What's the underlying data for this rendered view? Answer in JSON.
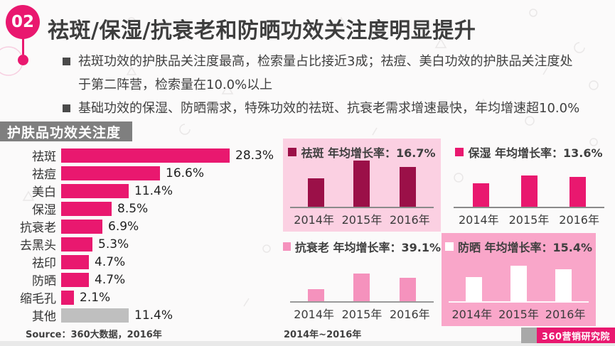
{
  "slide": {
    "number": "02",
    "title": "祛斑/保湿/抗衰老和防晒功效关注度明显提升",
    "bullets": [
      "祛斑功效的护肤品关注度最高，检索量占比接近3成；祛痘、美白功效的护肤品关注度处于第二阵营，检索量在10.0%以上",
      "基础功效的保湿、防晒需求，特殊功效的祛斑、抗衰老需求增速最快，年均增速超10.0%"
    ],
    "section_label": "护肤品功效关注度",
    "source": "Source：360大数据，2016年",
    "period_note": "2014年~2016年",
    "logo_text": "360营销研究院"
  },
  "colors": {
    "accent_magenta": "#e9186f",
    "dark_crimson": "#9b1048",
    "light_pink_bar": "#f592bd",
    "panel_pink_light": "#fbd0e2",
    "panel_pink_medium": "#f9a6c9",
    "other_bar_gray": "#bfbfbf",
    "band_gray": "#7f7f7f",
    "text_dark": "#3f3f3f"
  },
  "chart_data": [
    {
      "type": "bar",
      "orientation": "horizontal",
      "title": "护肤品功效关注度",
      "categories": [
        "祛斑",
        "祛痘",
        "美白",
        "保湿",
        "抗衰老",
        "去黑头",
        "祛印",
        "防晒",
        "缩毛孔",
        "其他"
      ],
      "values": [
        28.3,
        16.6,
        11.4,
        8.5,
        6.9,
        5.3,
        4.7,
        4.7,
        2.1,
        11.4
      ],
      "value_labels": [
        "28.3%",
        "16.6%",
        "11.4%",
        "8.5%",
        "6.9%",
        "5.3%",
        "4.7%",
        "4.7%",
        "2.1%",
        "11.4%"
      ],
      "unit": "%",
      "xlim": [
        0,
        30
      ],
      "note": "category 其他 drawn in gray, all others in magenta",
      "legend_position": "none",
      "grid": false
    },
    {
      "type": "bar",
      "name": "祛斑",
      "legend": "祛斑  年均增长率：16.7%",
      "growth_rate": "16.7%",
      "categories": [
        "2014年",
        "2015年",
        "2016年"
      ],
      "values": [
        38,
        62,
        53
      ],
      "unit": "relative search index (no y-axis shown, estimated)",
      "ylim": [
        0,
        70
      ],
      "bar_color": "#9b1048",
      "panel_bg": "#fbd0e2",
      "axis_color": "#8a8a8a",
      "grid": false
    },
    {
      "type": "bar",
      "name": "保湿",
      "legend": "保湿  年均增长率：13.6%",
      "growth_rate": "13.6%",
      "categories": [
        "2014年",
        "2015年",
        "2016年"
      ],
      "values": [
        31,
        42,
        40
      ],
      "unit": "relative search index (no y-axis shown, estimated)",
      "ylim": [
        0,
        70
      ],
      "bar_color": "#e9186f",
      "panel_bg": "",
      "axis_color": "#8a8a8a",
      "grid": false
    },
    {
      "type": "bar",
      "name": "抗衰老",
      "legend": "抗衰老  年均增长率：39.1%",
      "growth_rate": "39.1%",
      "categories": [
        "2014年",
        "2015年",
        "2016年"
      ],
      "values": [
        16,
        37,
        31
      ],
      "unit": "relative search index (no y-axis shown, estimated)",
      "ylim": [
        0,
        70
      ],
      "bar_color": "#f592bd",
      "panel_bg": "",
      "axis_color": "#9a9a9a",
      "grid": false
    },
    {
      "type": "bar",
      "name": "防晒",
      "legend": "防晒  年均增长率：15.4%",
      "growth_rate": "15.4%",
      "categories": [
        "2014年",
        "2015年",
        "2016年"
      ],
      "values": [
        32,
        48,
        43
      ],
      "unit": "relative search index (no y-axis shown, estimated)",
      "ylim": [
        0,
        70
      ],
      "bar_color": "#ffffff",
      "panel_bg": "#f9a6c9",
      "axis_color": "rgba(255,255,255,0.9)",
      "grid": false
    }
  ]
}
